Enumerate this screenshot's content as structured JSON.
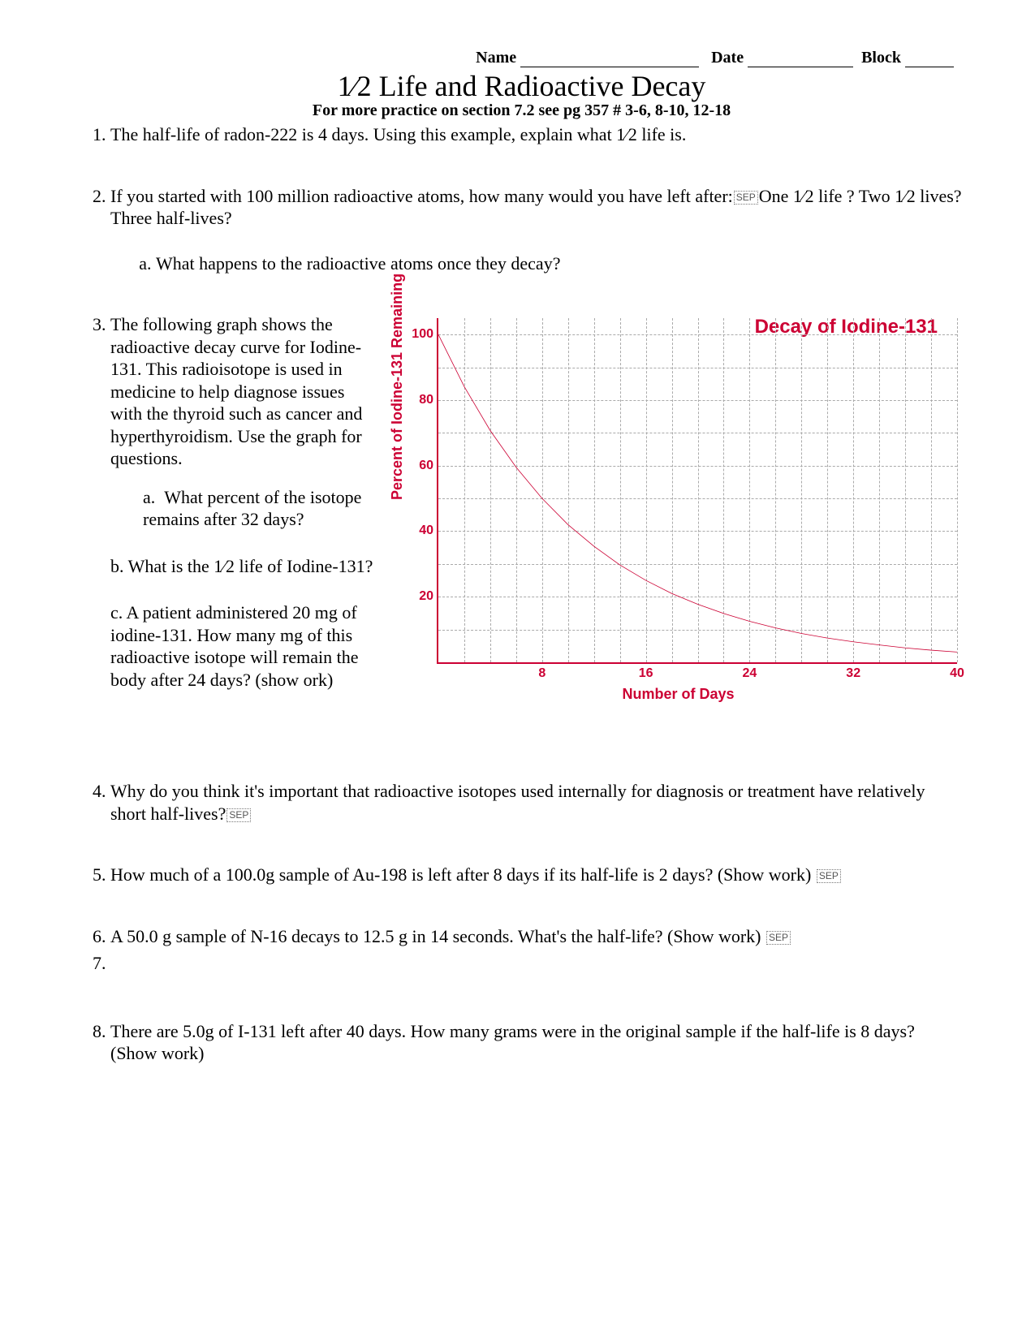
{
  "header": {
    "name_label": "Name",
    "date_label": "Date",
    "block_label": "Block"
  },
  "title": "1⁄2 Life and Radioactive Decay",
  "subtitle": "For more practice on section 7.2 see pg 357 # 3-6, 8-10, 12-18",
  "sep_marker": "SEP",
  "questions": {
    "q1": "The half-life of radon-222 is 4 days. Using this example, explain what 1⁄2 life is.",
    "q2_a": "If you started with 100 million radioactive atoms, how many would you have left after:",
    "q2_b": "One 1⁄2 life ? Two 1⁄2 lives?  Three half-lives?",
    "q2_sub_a": "What happens to the radioactive atoms once they decay?",
    "q3_intro": "The following graph shows the radioactive decay curve for Iodine-131. This radioisotope is used in medicine to help diagnose issues with the thyroid such as cancer and hyperthyroidism. Use the graph for questions.",
    "q3_a": "What percent of the isotope remains after 32 days?",
    "q3_b": "b. What is the 1⁄2 life of Iodine-131?",
    "q3_c": "c. A patient administered 20 mg of iodine-131. How many mg of this radioactive isotope will remain the body after 24 days? (show ork)",
    "q4": "Why do you think it's important that radioactive isotopes used internally for diagnosis or treatment have relatively short half-lives?",
    "q5": "How much of a 100.0g sample of Au-198 is left after 8 days if its half-life is 2 days? (Show work)",
    "q6": "A 50.0 g sample of N-16 decays to 12.5 g in 14 seconds. What's the half-life? (Show work)",
    "q8": "There are 5.0g of I-131 left after 40 days. How many grams were in the original sample if the half-life is 8 days? (Show work)"
  },
  "chart": {
    "title": "Decay of Iodine-131",
    "ylabel": "Percent of Iodine-131 Remaining",
    "xlabel": "Number of Days",
    "xlim": [
      0,
      40
    ],
    "ylim": [
      0,
      105
    ],
    "xticks": [
      8,
      16,
      24,
      32,
      40
    ],
    "yticks": [
      20,
      40,
      60,
      80,
      100
    ],
    "y_gridlines": [
      10,
      20,
      30,
      40,
      50,
      60,
      70,
      80,
      90,
      100
    ],
    "x_gridlines_step": 2,
    "curve_color": "#cc0033",
    "grid_color": "#aaaaaa",
    "axis_color": "#cc0033",
    "half_life_days": 8,
    "curve_points": [
      [
        0,
        100
      ],
      [
        2,
        84.1
      ],
      [
        4,
        70.7
      ],
      [
        6,
        59.5
      ],
      [
        8,
        50
      ],
      [
        10,
        42.0
      ],
      [
        12,
        35.4
      ],
      [
        14,
        29.7
      ],
      [
        16,
        25
      ],
      [
        18,
        21.0
      ],
      [
        20,
        17.7
      ],
      [
        22,
        14.9
      ],
      [
        24,
        12.5
      ],
      [
        26,
        10.5
      ],
      [
        28,
        8.8
      ],
      [
        30,
        7.4
      ],
      [
        32,
        6.25
      ],
      [
        34,
        5.3
      ],
      [
        36,
        4.4
      ],
      [
        38,
        3.7
      ],
      [
        40,
        3.125
      ]
    ]
  }
}
